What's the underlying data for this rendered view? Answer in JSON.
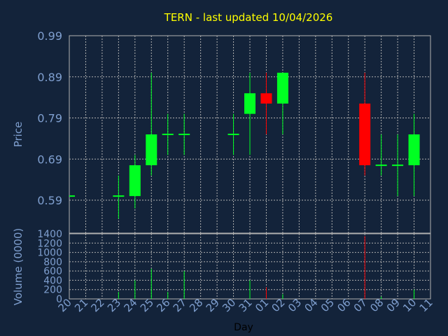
{
  "chart_data": {
    "type": "candlestick",
    "title": "TERN - last updated 10/04/2026",
    "xlabel": "Day",
    "ylabel": "Price",
    "volume_label": "Volume (0000)",
    "grid": true,
    "x_ticks": [
      "20",
      "21",
      "22",
      "23",
      "24",
      "25",
      "26",
      "27",
      "28",
      "29",
      "30",
      "31",
      "01",
      "02",
      "03",
      "04",
      "05",
      "06",
      "07",
      "08",
      "09",
      "10",
      "11"
    ],
    "price_ticks": [
      "0.99",
      "0.89",
      "0.79",
      "0.69",
      "0.59"
    ],
    "volume_ticks": [
      "1400",
      "1200",
      "1000",
      "800",
      "600",
      "400",
      "200",
      "0"
    ],
    "price_range": [
      0.51,
      0.99
    ],
    "volume_range": [
      0,
      1400
    ],
    "candles": [
      {
        "day": "20",
        "open": 0.6,
        "close": 0.6,
        "high": 0.6,
        "low": 0.6
      },
      {
        "day": "23",
        "open": 0.6,
        "close": 0.6,
        "high": 0.65,
        "low": 0.545
      },
      {
        "day": "24",
        "open": 0.6,
        "close": 0.675,
        "high": 0.7,
        "low": 0.57
      },
      {
        "day": "25",
        "open": 0.675,
        "close": 0.75,
        "high": 0.9,
        "low": 0.65
      },
      {
        "day": "26",
        "open": 0.75,
        "close": 0.75,
        "high": 0.8,
        "low": 0.7
      },
      {
        "day": "27",
        "open": 0.75,
        "close": 0.75,
        "high": 0.8,
        "low": 0.7
      },
      {
        "day": "30",
        "open": 0.75,
        "close": 0.75,
        "high": 0.8,
        "low": 0.7
      },
      {
        "day": "31",
        "open": 0.8,
        "close": 0.85,
        "high": 0.9,
        "low": 0.7
      },
      {
        "day": "01",
        "open": 0.85,
        "close": 0.825,
        "high": 0.9,
        "low": 0.75
      },
      {
        "day": "02",
        "open": 0.825,
        "close": 0.9,
        "high": 0.9,
        "low": 0.75
      },
      {
        "day": "07",
        "open": 0.825,
        "close": 0.675,
        "high": 0.9,
        "low": 0.65
      },
      {
        "day": "08",
        "open": 0.675,
        "close": 0.675,
        "high": 0.75,
        "low": 0.65
      },
      {
        "day": "09",
        "open": 0.675,
        "close": 0.675,
        "high": 0.75,
        "low": 0.6
      },
      {
        "day": "10",
        "open": 0.675,
        "close": 0.75,
        "high": 0.8,
        "low": 0.6
      }
    ],
    "volumes": [
      {
        "day": "23",
        "value": 150
      },
      {
        "day": "24",
        "value": 400
      },
      {
        "day": "25",
        "value": 650
      },
      {
        "day": "26",
        "value": 150
      },
      {
        "day": "27",
        "value": 600
      },
      {
        "day": "31",
        "value": 400
      },
      {
        "day": "01",
        "value": 250
      },
      {
        "day": "02",
        "value": 100
      },
      {
        "day": "07",
        "value": 1350
      },
      {
        "day": "08",
        "value": 50
      },
      {
        "day": "10",
        "value": 200
      }
    ],
    "colors": {
      "background": "#13233a",
      "up": "#00ff22",
      "down": "#ff0000",
      "title": "#ffff00",
      "axis_text": "#7f9fcf",
      "grid": "#b0b0b0",
      "frame": "#b0b0b0"
    }
  }
}
